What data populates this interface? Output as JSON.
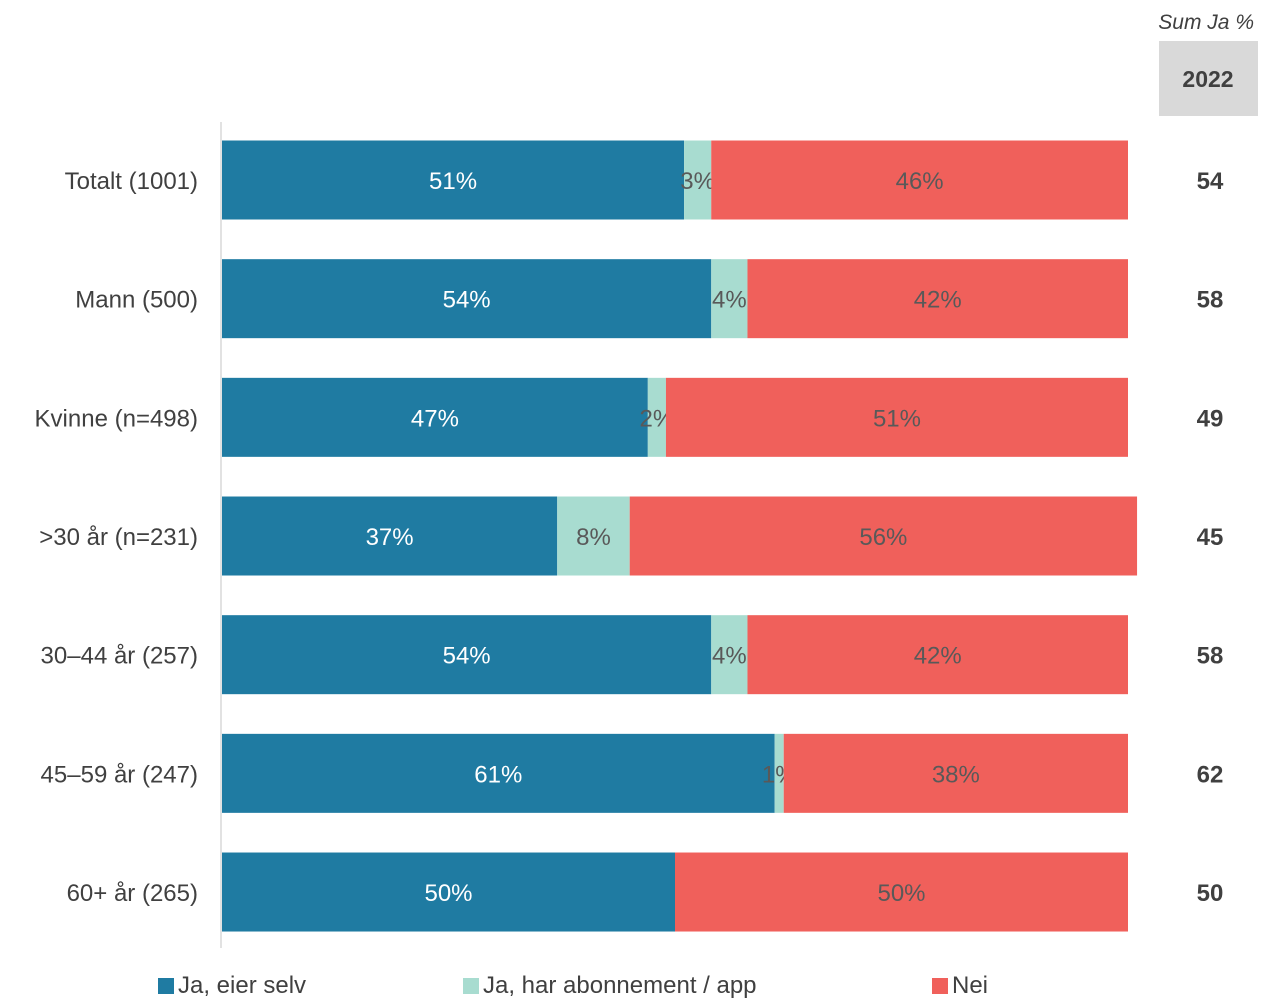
{
  "chart_data": {
    "type": "bar",
    "orientation": "horizontal",
    "stacked": true,
    "categories": [
      "Totalt (1001)",
      "Mann (500)",
      "Kvinne (n=498)",
      ">30 år (n=231)",
      "30–44 år (257)",
      "45–59 år (247)",
      "60+ år (265)"
    ],
    "series": [
      {
        "name": "Ja, eier selv",
        "color": "#1F7BA2",
        "label_color": "#FFFFFF",
        "values": [
          51,
          54,
          47,
          37,
          54,
          61,
          50
        ]
      },
      {
        "name": "Ja, har abonnement / app",
        "color": "#A8DCD0",
        "label_color": "#595959",
        "values": [
          3,
          4,
          2,
          8,
          4,
          1,
          0
        ]
      },
      {
        "name": "Nei",
        "color": "#F0605B",
        "label_color": "#595959",
        "values": [
          46,
          42,
          51,
          56,
          42,
          38,
          50
        ]
      }
    ],
    "value_suffix": "%",
    "xlim": [
      0,
      100
    ],
    "grid": false,
    "legend_position": "bottom",
    "side_table": {
      "title": "Sum Ja %",
      "year": "2022",
      "values": [
        54,
        58,
        49,
        45,
        58,
        62,
        50
      ]
    }
  }
}
